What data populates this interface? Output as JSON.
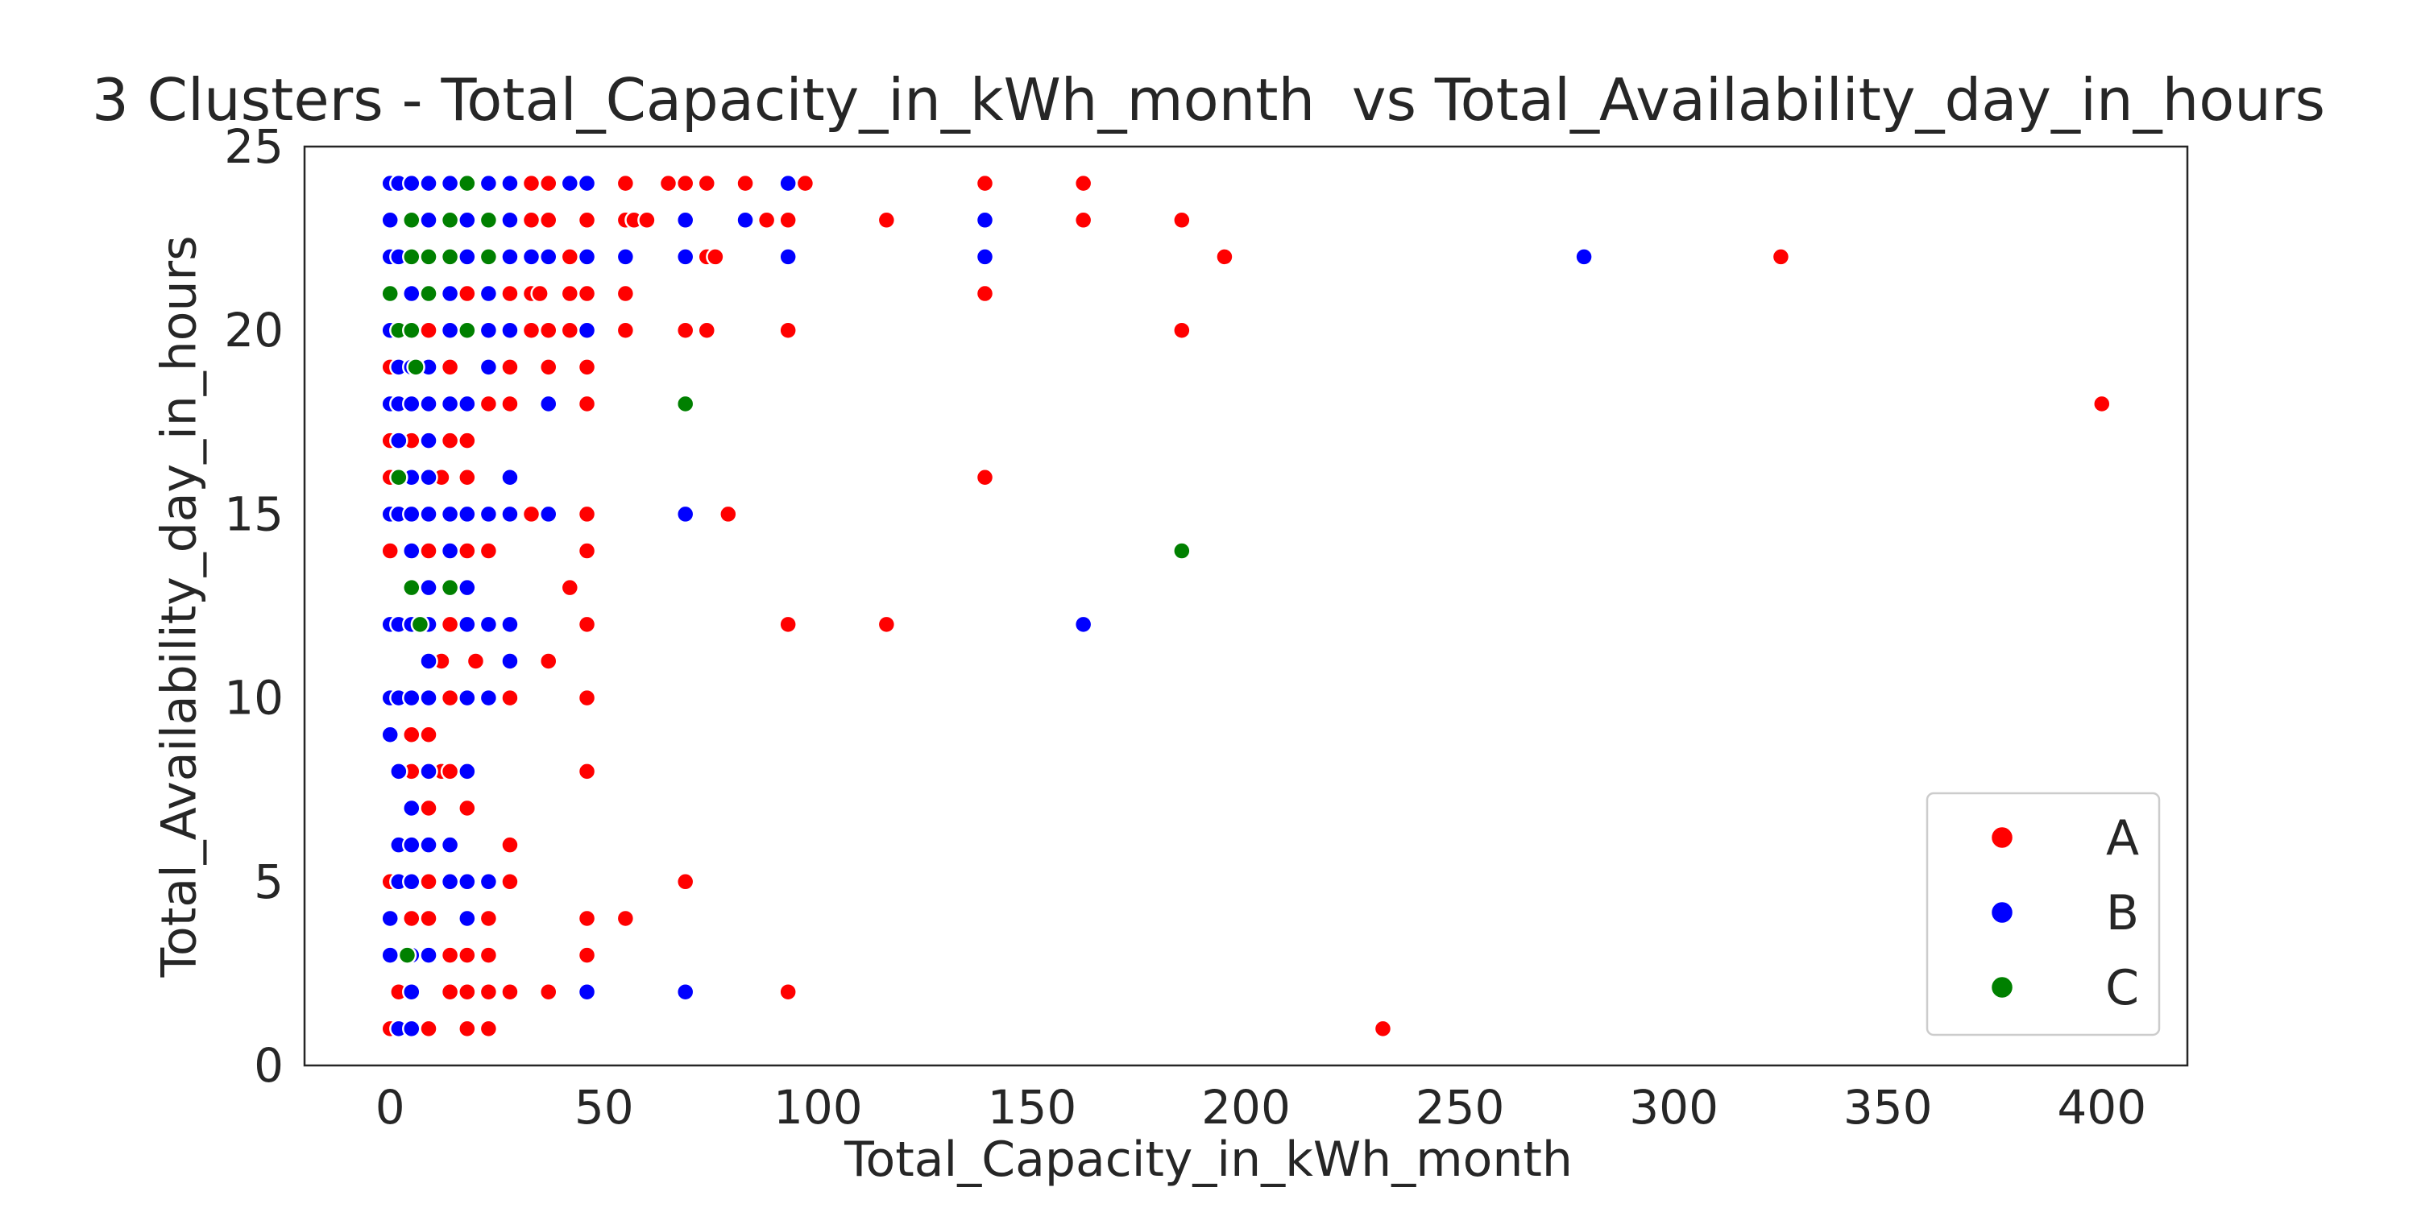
{
  "chart_data": {
    "type": "scatter",
    "title": "3 Clusters - Total_Capacity_in_kWh_month  vs Total_Availability_day_in_hours",
    "xlabel": "Total_Capacity_in_kWh_month",
    "ylabel": "Total_Availability_day_in_hours",
    "xlim": [
      -20,
      420
    ],
    "ylim": [
      0,
      25
    ],
    "xticks": [
      "0",
      "50",
      "100",
      "150",
      "200",
      "250",
      "300",
      "350",
      "400"
    ],
    "yticks": [
      "0",
      "5",
      "10",
      "15",
      "20",
      "25"
    ],
    "grid": false,
    "legend": {
      "placement": "lower right",
      "entries": [
        "A",
        "B",
        "C"
      ]
    },
    "colors": {
      "A": "#ff0000",
      "B": "#0000ff",
      "C": "#008000"
    },
    "series": [
      {
        "name": "A",
        "points": [
          [
            33,
            24
          ],
          [
            37,
            24
          ],
          [
            42,
            24
          ],
          [
            55,
            24
          ],
          [
            65,
            24
          ],
          [
            69,
            24
          ],
          [
            74,
            24
          ],
          [
            83,
            24
          ],
          [
            97,
            24
          ],
          [
            139,
            24
          ],
          [
            162,
            24
          ],
          [
            33,
            23
          ],
          [
            37,
            23
          ],
          [
            46,
            23
          ],
          [
            55,
            23
          ],
          [
            57,
            23
          ],
          [
            60,
            23
          ],
          [
            88,
            23
          ],
          [
            93,
            23
          ],
          [
            116,
            23
          ],
          [
            139,
            23
          ],
          [
            162,
            23
          ],
          [
            185,
            23
          ],
          [
            5,
            22
          ],
          [
            9,
            22
          ],
          [
            23,
            22
          ],
          [
            42,
            22
          ],
          [
            74,
            22
          ],
          [
            76,
            22
          ],
          [
            195,
            22
          ],
          [
            325,
            22
          ],
          [
            14,
            21
          ],
          [
            18,
            21
          ],
          [
            23,
            21
          ],
          [
            28,
            21
          ],
          [
            33,
            21
          ],
          [
            35,
            21
          ],
          [
            42,
            21
          ],
          [
            46,
            21
          ],
          [
            55,
            21
          ],
          [
            139,
            21
          ],
          [
            9,
            20
          ],
          [
            23,
            20
          ],
          [
            28,
            20
          ],
          [
            33,
            20
          ],
          [
            37,
            20
          ],
          [
            42,
            20
          ],
          [
            55,
            20
          ],
          [
            69,
            20
          ],
          [
            74,
            20
          ],
          [
            93,
            20
          ],
          [
            185,
            20
          ],
          [
            0,
            19
          ],
          [
            9,
            19
          ],
          [
            14,
            19
          ],
          [
            28,
            19
          ],
          [
            37,
            19
          ],
          [
            46,
            19
          ],
          [
            23,
            18
          ],
          [
            28,
            18
          ],
          [
            46,
            18
          ],
          [
            400,
            18
          ],
          [
            0,
            17
          ],
          [
            5,
            17
          ],
          [
            9,
            17
          ],
          [
            14,
            17
          ],
          [
            18,
            17
          ],
          [
            0,
            16
          ],
          [
            12,
            16
          ],
          [
            18,
            16
          ],
          [
            139,
            16
          ],
          [
            33,
            15
          ],
          [
            46,
            15
          ],
          [
            79,
            15
          ],
          [
            0,
            14
          ],
          [
            9,
            14
          ],
          [
            18,
            14
          ],
          [
            23,
            14
          ],
          [
            46,
            14
          ],
          [
            42,
            13
          ],
          [
            14,
            12
          ],
          [
            46,
            12
          ],
          [
            93,
            12
          ],
          [
            116,
            12
          ],
          [
            12,
            11
          ],
          [
            20,
            11
          ],
          [
            37,
            11
          ],
          [
            9,
            10
          ],
          [
            14,
            10
          ],
          [
            18,
            10
          ],
          [
            28,
            10
          ],
          [
            46,
            10
          ],
          [
            5,
            9
          ],
          [
            9,
            9
          ],
          [
            5,
            8
          ],
          [
            12,
            8
          ],
          [
            14,
            8
          ],
          [
            46,
            8
          ],
          [
            9,
            7
          ],
          [
            18,
            7
          ],
          [
            14,
            6
          ],
          [
            28,
            6
          ],
          [
            0,
            5
          ],
          [
            9,
            5
          ],
          [
            28,
            5
          ],
          [
            69,
            5
          ],
          [
            5,
            4
          ],
          [
            9,
            4
          ],
          [
            23,
            4
          ],
          [
            46,
            4
          ],
          [
            55,
            4
          ],
          [
            14,
            3
          ],
          [
            18,
            3
          ],
          [
            23,
            3
          ],
          [
            46,
            3
          ],
          [
            2,
            2
          ],
          [
            14,
            2
          ],
          [
            18,
            2
          ],
          [
            23,
            2
          ],
          [
            28,
            2
          ],
          [
            37,
            2
          ],
          [
            93,
            2
          ],
          [
            0,
            1
          ],
          [
            9,
            1
          ],
          [
            18,
            1
          ],
          [
            23,
            1
          ],
          [
            232,
            1
          ]
        ]
      },
      {
        "name": "B",
        "points": [
          [
            0,
            24
          ],
          [
            2,
            24
          ],
          [
            5,
            24
          ],
          [
            9,
            24
          ],
          [
            14,
            24
          ],
          [
            23,
            24
          ],
          [
            28,
            24
          ],
          [
            42,
            24
          ],
          [
            46,
            24
          ],
          [
            93,
            24
          ],
          [
            0,
            23
          ],
          [
            9,
            23
          ],
          [
            14,
            23
          ],
          [
            18,
            23
          ],
          [
            28,
            23
          ],
          [
            69,
            23
          ],
          [
            83,
            23
          ],
          [
            139,
            23
          ],
          [
            0,
            22
          ],
          [
            2,
            22
          ],
          [
            14,
            22
          ],
          [
            18,
            22
          ],
          [
            28,
            22
          ],
          [
            33,
            22
          ],
          [
            37,
            22
          ],
          [
            46,
            22
          ],
          [
            55,
            22
          ],
          [
            69,
            22
          ],
          [
            93,
            22
          ],
          [
            139,
            22
          ],
          [
            279,
            22
          ],
          [
            0,
            21
          ],
          [
            5,
            21
          ],
          [
            14,
            21
          ],
          [
            23,
            21
          ],
          [
            0,
            20
          ],
          [
            5,
            20
          ],
          [
            14,
            20
          ],
          [
            23,
            20
          ],
          [
            28,
            20
          ],
          [
            46,
            20
          ],
          [
            2,
            19
          ],
          [
            5,
            19
          ],
          [
            9,
            19
          ],
          [
            23,
            19
          ],
          [
            0,
            18
          ],
          [
            2,
            18
          ],
          [
            5,
            18
          ],
          [
            9,
            18
          ],
          [
            14,
            18
          ],
          [
            18,
            18
          ],
          [
            37,
            18
          ],
          [
            2,
            17
          ],
          [
            9,
            17
          ],
          [
            5,
            16
          ],
          [
            9,
            16
          ],
          [
            28,
            16
          ],
          [
            0,
            15
          ],
          [
            2,
            15
          ],
          [
            5,
            15
          ],
          [
            9,
            15
          ],
          [
            14,
            15
          ],
          [
            18,
            15
          ],
          [
            23,
            15
          ],
          [
            28,
            15
          ],
          [
            37,
            15
          ],
          [
            69,
            15
          ],
          [
            5,
            14
          ],
          [
            14,
            14
          ],
          [
            9,
            13
          ],
          [
            18,
            13
          ],
          [
            0,
            12
          ],
          [
            2,
            12
          ],
          [
            5,
            12
          ],
          [
            9,
            12
          ],
          [
            18,
            12
          ],
          [
            23,
            12
          ],
          [
            28,
            12
          ],
          [
            162,
            12
          ],
          [
            9,
            11
          ],
          [
            28,
            11
          ],
          [
            0,
            10
          ],
          [
            2,
            10
          ],
          [
            5,
            10
          ],
          [
            9,
            10
          ],
          [
            18,
            10
          ],
          [
            23,
            10
          ],
          [
            0,
            9
          ],
          [
            2,
            8
          ],
          [
            9,
            8
          ],
          [
            18,
            8
          ],
          [
            5,
            7
          ],
          [
            2,
            6
          ],
          [
            5,
            6
          ],
          [
            9,
            6
          ],
          [
            14,
            6
          ],
          [
            2,
            5
          ],
          [
            5,
            5
          ],
          [
            14,
            5
          ],
          [
            18,
            5
          ],
          [
            23,
            5
          ],
          [
            0,
            4
          ],
          [
            18,
            4
          ],
          [
            0,
            3
          ],
          [
            5,
            3
          ],
          [
            9,
            3
          ],
          [
            5,
            2
          ],
          [
            46,
            2
          ],
          [
            69,
            2
          ],
          [
            2,
            1
          ],
          [
            5,
            1
          ]
        ]
      },
      {
        "name": "C",
        "points": [
          [
            18,
            24
          ],
          [
            5,
            23
          ],
          [
            14,
            23
          ],
          [
            23,
            23
          ],
          [
            5,
            22
          ],
          [
            9,
            22
          ],
          [
            14,
            22
          ],
          [
            23,
            22
          ],
          [
            0,
            21
          ],
          [
            9,
            21
          ],
          [
            2,
            20
          ],
          [
            5,
            20
          ],
          [
            18,
            20
          ],
          [
            6,
            19
          ],
          [
            69,
            18
          ],
          [
            2,
            16
          ],
          [
            185,
            14
          ],
          [
            5,
            13
          ],
          [
            14,
            13
          ],
          [
            7,
            12
          ],
          [
            4,
            3
          ]
        ]
      }
    ]
  }
}
